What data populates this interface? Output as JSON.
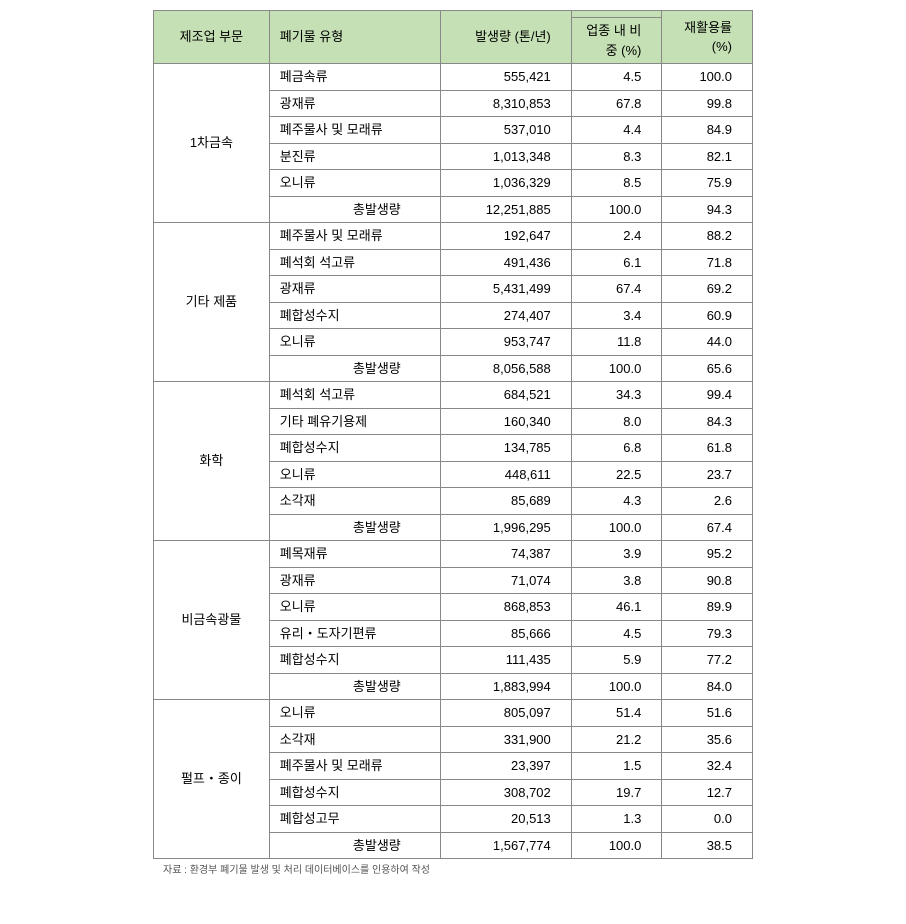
{
  "headers": {
    "sector": "제조업 부문",
    "wasteType": "폐기물 유형",
    "generation": "발생량 (톤/년)",
    "shareTop": "",
    "share": "업종 내 비중 (%)",
    "recycleRate": "재활용률 (%)"
  },
  "totalLabel": "총발생량",
  "sectors": [
    {
      "name": "1차금속",
      "rows": [
        {
          "type": "폐금속류",
          "gen": "555,421",
          "share": "4.5",
          "rate": "100.0"
        },
        {
          "type": "광재류",
          "gen": "8,310,853",
          "share": "67.8",
          "rate": "99.8"
        },
        {
          "type": "폐주물사 및 모래류",
          "gen": "537,010",
          "share": "4.4",
          "rate": "84.9"
        },
        {
          "type": "분진류",
          "gen": "1,013,348",
          "share": "8.3",
          "rate": "82.1"
        },
        {
          "type": "오니류",
          "gen": "1,036,329",
          "share": "8.5",
          "rate": "75.9"
        }
      ],
      "total": {
        "gen": "12,251,885",
        "share": "100.0",
        "rate": "94.3"
      }
    },
    {
      "name": "기타 제품",
      "rows": [
        {
          "type": "폐주물사 및 모래류",
          "gen": "192,647",
          "share": "2.4",
          "rate": "88.2"
        },
        {
          "type": "폐석회 석고류",
          "gen": "491,436",
          "share": "6.1",
          "rate": "71.8"
        },
        {
          "type": "광재류",
          "gen": "5,431,499",
          "share": "67.4",
          "rate": "69.2"
        },
        {
          "type": "폐합성수지",
          "gen": "274,407",
          "share": "3.4",
          "rate": "60.9"
        },
        {
          "type": "오니류",
          "gen": "953,747",
          "share": "11.8",
          "rate": "44.0"
        }
      ],
      "total": {
        "gen": "8,056,588",
        "share": "100.0",
        "rate": "65.6"
      }
    },
    {
      "name": "화학",
      "rows": [
        {
          "type": "폐석회 석고류",
          "gen": "684,521",
          "share": "34.3",
          "rate": "99.4"
        },
        {
          "type": "기타 폐유기용제",
          "gen": "160,340",
          "share": "8.0",
          "rate": "84.3"
        },
        {
          "type": "폐합성수지",
          "gen": "134,785",
          "share": "6.8",
          "rate": "61.8"
        },
        {
          "type": "오니류",
          "gen": "448,611",
          "share": "22.5",
          "rate": "23.7"
        },
        {
          "type": "소각재",
          "gen": "85,689",
          "share": "4.3",
          "rate": "2.6"
        }
      ],
      "total": {
        "gen": "1,996,295",
        "share": "100.0",
        "rate": "67.4"
      }
    },
    {
      "name": "비금속광물",
      "rows": [
        {
          "type": "폐목재류",
          "gen": "74,387",
          "share": "3.9",
          "rate": "95.2"
        },
        {
          "type": "광재류",
          "gen": "71,074",
          "share": "3.8",
          "rate": "90.8"
        },
        {
          "type": "오니류",
          "gen": "868,853",
          "share": "46.1",
          "rate": "89.9"
        },
        {
          "type": "유리・도자기편류",
          "gen": "85,666",
          "share": "4.5",
          "rate": "79.3"
        },
        {
          "type": "폐합성수지",
          "gen": "111,435",
          "share": "5.9",
          "rate": "77.2"
        }
      ],
      "total": {
        "gen": "1,883,994",
        "share": "100.0",
        "rate": "84.0"
      }
    },
    {
      "name": "펄프・종이",
      "rows": [
        {
          "type": "오니류",
          "gen": "805,097",
          "share": "51.4",
          "rate": "51.6"
        },
        {
          "type": "소각재",
          "gen": "331,900",
          "share": "21.2",
          "rate": "35.6"
        },
        {
          "type": "폐주물사 및 모래류",
          "gen": "23,397",
          "share": "1.5",
          "rate": "32.4"
        },
        {
          "type": "폐합성수지",
          "gen": "308,702",
          "share": "19.7",
          "rate": "12.7"
        },
        {
          "type": "폐합성고무",
          "gen": "20,513",
          "share": "1.3",
          "rate": "0.0"
        }
      ],
      "total": {
        "gen": "1,567,774",
        "share": "100.0",
        "rate": "38.5"
      }
    }
  ],
  "footnote": "자료 : 환경부 폐기물 발생 및 처리 데이터베이스를 인용하여 작성"
}
